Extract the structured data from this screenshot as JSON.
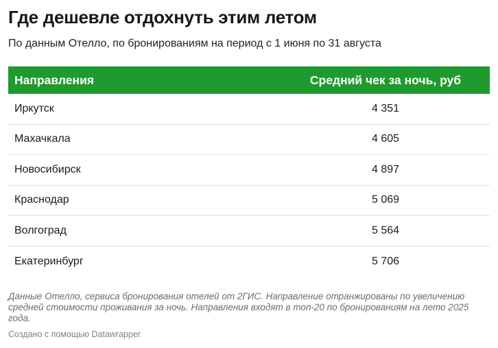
{
  "title": "Где дешевле отдохнуть этим летом",
  "subtitle": "По данным Отелло, по бронированиям на период с 1 июня по 31 августа",
  "chart_data": {
    "type": "table",
    "columns": [
      "Направления",
      "Средний чек за ночь, руб"
    ],
    "rows": [
      {
        "name": "Иркутск",
        "value": "4 351"
      },
      {
        "name": "Махачкала",
        "value": "4 605"
      },
      {
        "name": "Новосибирск",
        "value": "4 897"
      },
      {
        "name": "Краснодар",
        "value": "5 069"
      },
      {
        "name": "Волгоград",
        "value": "5 564"
      },
      {
        "name": "Екатеринбург",
        "value": "5 706"
      }
    ],
    "header_color": "#1e9a2e"
  },
  "notes": "Данные Отелло, сервиса бронирования отелей от 2ГИС. Направление отранжированы по увеличению средней стоимости проживания за ночь. Направления входят в топ-20 по бронированиям на лето 2025 года.",
  "credit": "Создано с помощью Datawrapper"
}
